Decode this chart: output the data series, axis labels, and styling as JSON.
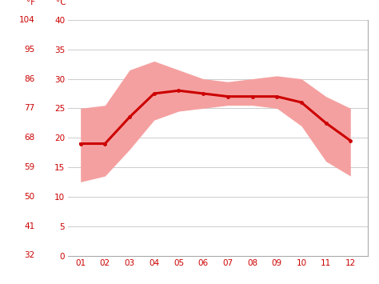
{
  "months": [
    1,
    2,
    3,
    4,
    5,
    6,
    7,
    8,
    9,
    10,
    11,
    12
  ],
  "month_labels": [
    "01",
    "02",
    "03",
    "04",
    "05",
    "06",
    "07",
    "08",
    "09",
    "10",
    "11",
    "12"
  ],
  "avg_temp_c": [
    19.0,
    19.0,
    23.5,
    27.5,
    28.0,
    27.5,
    27.0,
    27.0,
    27.0,
    26.0,
    22.5,
    19.5
  ],
  "min_temp_c": [
    12.5,
    13.5,
    18.0,
    23.0,
    24.5,
    25.0,
    25.5,
    25.5,
    25.0,
    22.0,
    16.0,
    13.5
  ],
  "max_temp_c": [
    25.0,
    25.5,
    31.5,
    33.0,
    31.5,
    30.0,
    29.5,
    30.0,
    30.5,
    30.0,
    27.0,
    25.0
  ],
  "ylim_c": [
    0,
    40
  ],
  "yticks_c": [
    0,
    5,
    10,
    15,
    20,
    25,
    30,
    35,
    40
  ],
  "yticks_f": [
    32,
    41,
    50,
    59,
    68,
    77,
    86,
    95,
    104
  ],
  "line_color": "#cc0000",
  "band_color": "#f5a0a0",
  "grid_color": "#cccccc",
  "axis_color": "#cc0000",
  "bg_color": "#ffffff",
  "label_f": "°F",
  "label_c": "°C",
  "line_width": 2.2,
  "marker": "o",
  "marker_size": 3.5,
  "spine_color": "#aaaaaa"
}
